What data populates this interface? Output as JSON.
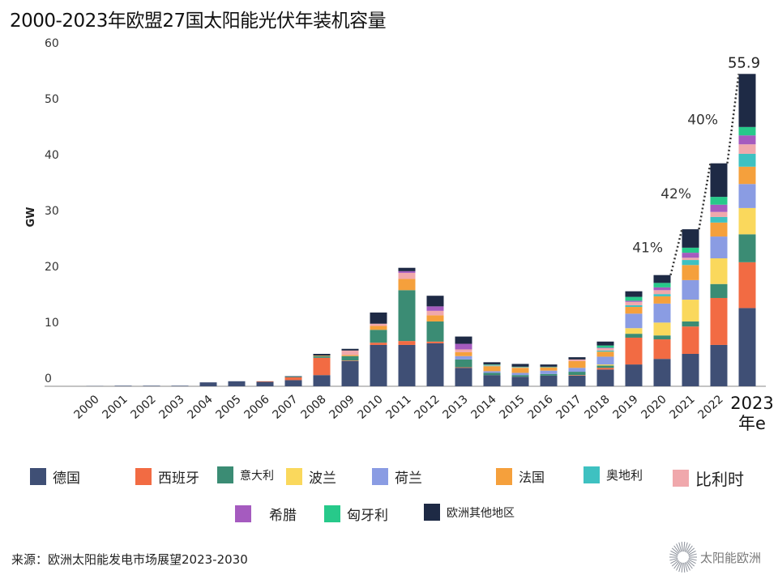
{
  "title": "2000-2023年欧盟27国太阳能光伏年装机容量",
  "source": "来源：欧洲太阳能发电市场展望2023-2030",
  "logo_text": "太阳能欧洲",
  "chart_data": {
    "type": "bar",
    "stacked": true,
    "title": "2000-2023年欧盟27国太阳能光伏年装机容量",
    "xlabel": "",
    "ylabel": "GW",
    "ylim": [
      0,
      60
    ],
    "yticks": [
      "0",
      "10",
      "20",
      "30",
      "40",
      "50",
      "60"
    ],
    "grid": false,
    "legend_position": "bottom",
    "categories": [
      "2000",
      "2001",
      "2002",
      "2003",
      "2004",
      "2005",
      "2006",
      "2007",
      "2008",
      "2009",
      "2010",
      "2011",
      "2012",
      "2013",
      "2014",
      "2015",
      "2016",
      "2017",
      "2018",
      "2019",
      "2020",
      "2021",
      "2022",
      "2023年e"
    ],
    "series": [
      {
        "name": "德国",
        "color": "#3f4f75",
        "values": [
          0.04,
          0.1,
          0.1,
          0.1,
          0.7,
          0.9,
          0.8,
          1.1,
          2.0,
          4.5,
          7.4,
          7.4,
          7.7,
          3.3,
          2.0,
          1.7,
          1.9,
          1.9,
          3.0,
          3.9,
          4.9,
          5.8,
          7.4,
          14.0
        ]
      },
      {
        "name": "西班牙",
        "color": "#f26b43",
        "values": [
          0,
          0,
          0,
          0,
          0,
          0,
          0.1,
          0.5,
          3.1,
          0.1,
          0.4,
          0.7,
          0.3,
          0.1,
          0,
          0,
          0,
          0.1,
          0.3,
          4.8,
          3.5,
          4.9,
          8.4,
          8.2
        ]
      },
      {
        "name": "意大利",
        "color": "#3b8c74",
        "values": [
          0,
          0,
          0,
          0,
          0,
          0,
          0,
          0.1,
          0.3,
          0.8,
          2.3,
          9.1,
          3.6,
          1.4,
          0.4,
          0.3,
          0.3,
          0.6,
          0.4,
          0.7,
          0.7,
          0.9,
          2.5,
          5.0
        ]
      },
      {
        "name": "波兰",
        "color": "#fad85c",
        "values": [
          0,
          0,
          0,
          0,
          0,
          0,
          0,
          0,
          0,
          0,
          0,
          0,
          0,
          0,
          0,
          0,
          0,
          0,
          0.2,
          1.0,
          2.3,
          3.9,
          4.6,
          4.7
        ]
      },
      {
        "name": "荷兰",
        "color": "#8a9ce3",
        "values": [
          0,
          0,
          0,
          0,
          0,
          0,
          0,
          0,
          0,
          0,
          0,
          0,
          0,
          0.6,
          0.3,
          0.4,
          0.6,
          0.7,
          1.4,
          2.6,
          3.4,
          3.5,
          3.9,
          4.3
        ]
      },
      {
        "name": "法国",
        "color": "#f5a03c",
        "values": [
          0,
          0,
          0,
          0,
          0,
          0,
          0,
          0,
          0.1,
          0.2,
          0.7,
          2.0,
          1.1,
          0.7,
          0.9,
          0.9,
          0.6,
          1.2,
          0.9,
          1.2,
          1.3,
          2.7,
          2.5,
          3.1
        ]
      },
      {
        "name": "奥地利",
        "color": "#3ec1c1",
        "values": [
          0,
          0,
          0,
          0,
          0,
          0,
          0,
          0,
          0,
          0,
          0,
          0,
          0,
          0,
          0.1,
          0,
          0.1,
          0,
          0.2,
          0.3,
          0.4,
          0.9,
          1.0,
          2.3
        ]
      },
      {
        "name": "比利时",
        "color": "#f0a8ac",
        "values": [
          0,
          0,
          0,
          0,
          0,
          0,
          0,
          0,
          0,
          0.8,
          0.4,
          1.1,
          0.8,
          0.5,
          0.1,
          0.1,
          0,
          0.3,
          0.4,
          0.6,
          0.7,
          0.4,
          0.9,
          1.7
        ]
      },
      {
        "name": "希腊",
        "color": "#a55bbf",
        "values": [
          0,
          0,
          0,
          0,
          0,
          0,
          0,
          0,
          0,
          0,
          0,
          0.3,
          0.8,
          1.0,
          0,
          0,
          0,
          0,
          0.1,
          0.2,
          0.5,
          0.9,
          1.3,
          1.6
        ]
      },
      {
        "name": "匈牙利",
        "color": "#27c98a",
        "values": [
          0,
          0,
          0,
          0,
          0,
          0,
          0,
          0,
          0,
          0,
          0,
          0,
          0,
          0,
          0.1,
          0.1,
          0,
          0,
          0.4,
          0.7,
          0.8,
          0.9,
          1.4,
          1.5
        ]
      },
      {
        "name": "欧洲其他地区",
        "color": "#1e2a45",
        "values": [
          0,
          0,
          0,
          0,
          0,
          0,
          0,
          0.1,
          0.3,
          0.3,
          2.0,
          0.6,
          1.9,
          1.3,
          0.4,
          0.5,
          0.4,
          0.4,
          0.7,
          1.0,
          1.4,
          3.3,
          6.0,
          9.5
        ]
      }
    ],
    "annotations": {
      "growth": [
        {
          "from": "2020",
          "to": "2021",
          "label": "41%"
        },
        {
          "from": "2021",
          "to": "2022",
          "label": "42%"
        },
        {
          "from": "2022",
          "to": "2023年e",
          "label": "40%"
        }
      ],
      "total_label": "55.9"
    }
  }
}
